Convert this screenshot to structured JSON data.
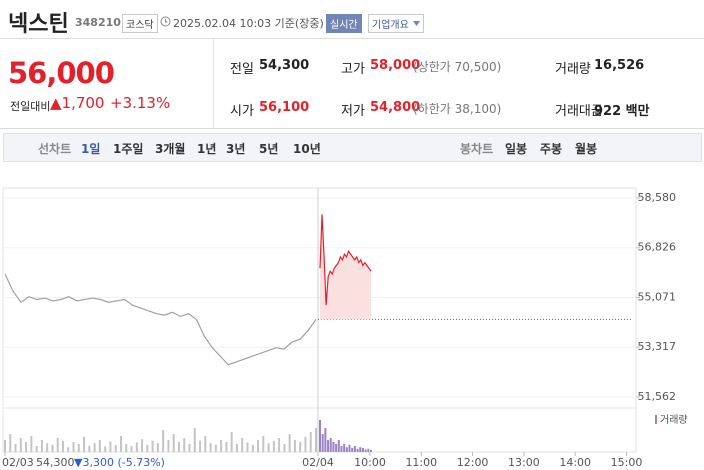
{
  "header": {
    "name": "넥스틴",
    "code": "348210",
    "market": "코스닥",
    "timestamp": "2025.02.04 10:03 기준(장중)",
    "realtime": "실시간",
    "company_info": "기업개요"
  },
  "quote": {
    "price": "56,000",
    "change_label": "전일대비",
    "change": "▲1,700",
    "change_rate": "+3.13%",
    "stats": [
      {
        "label": "전일",
        "value": "54,300",
        "color": "#222222"
      },
      {
        "label": "고가",
        "value": "58,000",
        "note": "(상한가 70,500)",
        "color": "#e4212b"
      },
      {
        "label": "거래량",
        "value": "16,526",
        "color": "#222222"
      },
      {
        "label": "시가",
        "value": "56,100",
        "color": "#e4212b"
      },
      {
        "label": "저가",
        "value": "54,800",
        "note": "(하한가 38,100)",
        "color": "#e4212b"
      },
      {
        "label": "거래대금",
        "value": "922 백만",
        "color": "#222222"
      }
    ]
  },
  "tabs": {
    "line_label": "선차트",
    "periods": [
      "1일",
      "1주일",
      "3개월",
      "1년",
      "3년",
      "5년",
      "10년"
    ],
    "selected": 0,
    "candle_label": "봉차트",
    "candles": [
      "일봉",
      "주봉",
      "월봉"
    ]
  },
  "chart_data": {
    "type": "line",
    "ylim": [
      51562,
      58580
    ],
    "yticks": [
      {
        "value": 51562,
        "label": "51,562"
      },
      {
        "value": 53317,
        "label": "53,317"
      },
      {
        "value": 55071,
        "label": "55,071"
      },
      {
        "value": 56826,
        "label": "56,826"
      },
      {
        "value": 58580,
        "label": "58,580"
      }
    ],
    "xticks": [
      "02/03",
      "02/04",
      "10:00",
      "11:00",
      "12:00",
      "13:00",
      "14:00",
      "15:00"
    ],
    "baseline": 54300,
    "series": [
      {
        "color": "#a0a0a0",
        "values": [
          55900,
          55300,
          54900,
          55100,
          55000,
          55050,
          54950,
          55000,
          55100,
          54950,
          55000,
          55050,
          55000,
          54900,
          54950,
          55000,
          54800,
          54700,
          54600,
          54500,
          54450,
          54550,
          54400,
          54500,
          54300,
          53700,
          53300,
          53000,
          52700,
          52800,
          52900,
          53000,
          53100,
          53200,
          53300,
          53250,
          53500,
          53600,
          53900,
          54300
        ]
      },
      {
        "color": "#e4212b",
        "fill": "#fbe0e0",
        "values": [
          56100,
          58000,
          56500,
          54800,
          55800,
          56000,
          55900,
          56100,
          56200,
          56300,
          56500,
          56400,
          56600,
          56500,
          56700,
          56600,
          56500,
          56400,
          56500,
          56300,
          56400,
          56200,
          56300,
          56200,
          56100,
          56000
        ]
      }
    ],
    "prev_summary": {
      "close": "54,300",
      "change": "▼3,300 (-5.73%)"
    },
    "volume": {
      "label": "거래량",
      "ylim": [
        0,
        100
      ],
      "series": [
        {
          "color": "#c4c4c4",
          "values": [
            30,
            45,
            20,
            35,
            25,
            40,
            15,
            30,
            22,
            18,
            35,
            28,
            12,
            25,
            20,
            38,
            16,
            22,
            30,
            14,
            26,
            18,
            40,
            20,
            15,
            24,
            32,
            18,
            28,
            22,
            55,
            30,
            45,
            25,
            35,
            20,
            60,
            28,
            40,
            22,
            18,
            30,
            25,
            50,
            20,
            35,
            24,
            18,
            30,
            40,
            22,
            28,
            35,
            20,
            45,
            30,
            25,
            38,
            50,
            60
          ]
        },
        {
          "color": "#9a82c9",
          "values": [
            80,
            45,
            60,
            30,
            35,
            25,
            20,
            30,
            15,
            20,
            12,
            18,
            10,
            15,
            8,
            12,
            10,
            6,
            8,
            5
          ]
        }
      ]
    }
  }
}
